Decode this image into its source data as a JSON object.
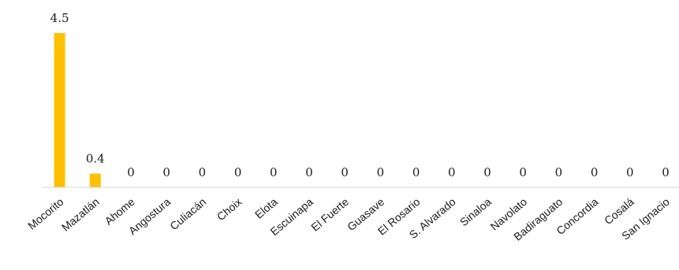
{
  "chart_data": {
    "type": "bar",
    "categories": [
      "Mocorito",
      "Mazatlán",
      "Ahome",
      "Angostura",
      "Culiacán",
      "Choix",
      "Elota",
      "Escuinapa",
      "El Fuerte",
      "Guasave",
      "El Rosario",
      "S. Alvarado",
      "Sinaloa",
      "Navolato",
      "Badiraguato",
      "Concordia",
      "Cosalá",
      "San Ignacio"
    ],
    "values": [
      4.5,
      0.4,
      0,
      0,
      0,
      0,
      0,
      0,
      0,
      0,
      0,
      0,
      0,
      0,
      0,
      0,
      0,
      0
    ],
    "data_labels": [
      "4.5",
      "0.4",
      "0",
      "0",
      "0",
      "0",
      "0",
      "0",
      "0",
      "0",
      "0",
      "0",
      "0",
      "0",
      "0",
      "0",
      "0",
      "0"
    ],
    "title": "",
    "xlabel": "",
    "ylabel": "",
    "ylim": [
      0,
      5
    ],
    "grid": false,
    "legend": "none",
    "colors": {
      "bar": "#FFC000",
      "axis": "#d9d9d9"
    }
  }
}
